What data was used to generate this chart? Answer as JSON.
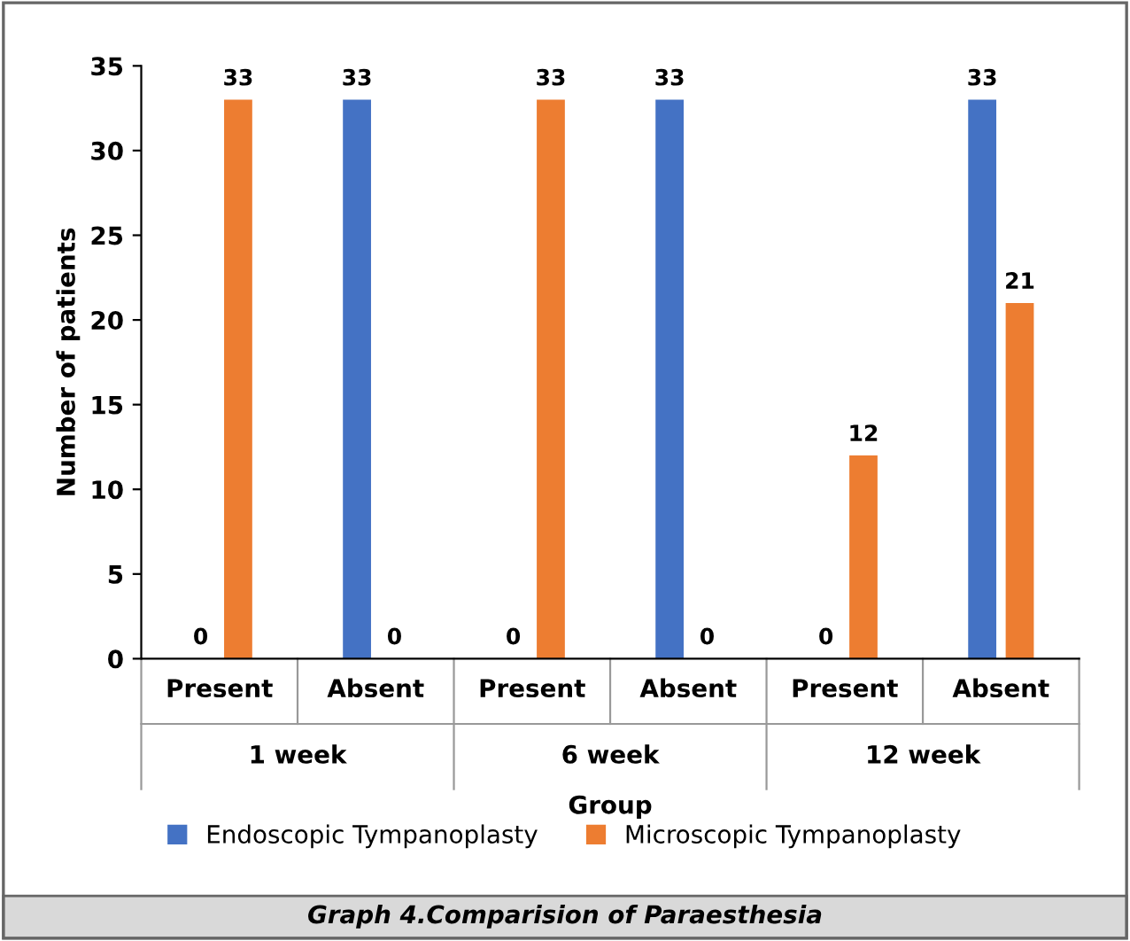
{
  "chart_data": {
    "type": "bar",
    "title": "Graph 4.Comparision of Paraesthesia",
    "xlabel": "Group",
    "ylabel": "Number of patients",
    "categories": [
      "Present",
      "Absent",
      "Present",
      "Absent",
      "Present",
      "Absent"
    ],
    "annotations": [
      "1 week",
      "6 week",
      "12 week"
    ],
    "series": [
      {
        "name": "Endoscopic Tympanoplasty",
        "color": "#4472c4",
        "values": [
          0,
          33,
          0,
          33,
          0,
          33
        ]
      },
      {
        "name": "Microscopic Tympanoplasty",
        "color": "#ed7d31",
        "values": [
          33,
          0,
          33,
          0,
          12,
          21
        ]
      }
    ],
    "ylim": [
      0,
      35
    ],
    "yticks": [
      0,
      5,
      10,
      15,
      20,
      25,
      30,
      35
    ],
    "data_labels": true,
    "grid": false,
    "legend": "bottom"
  }
}
